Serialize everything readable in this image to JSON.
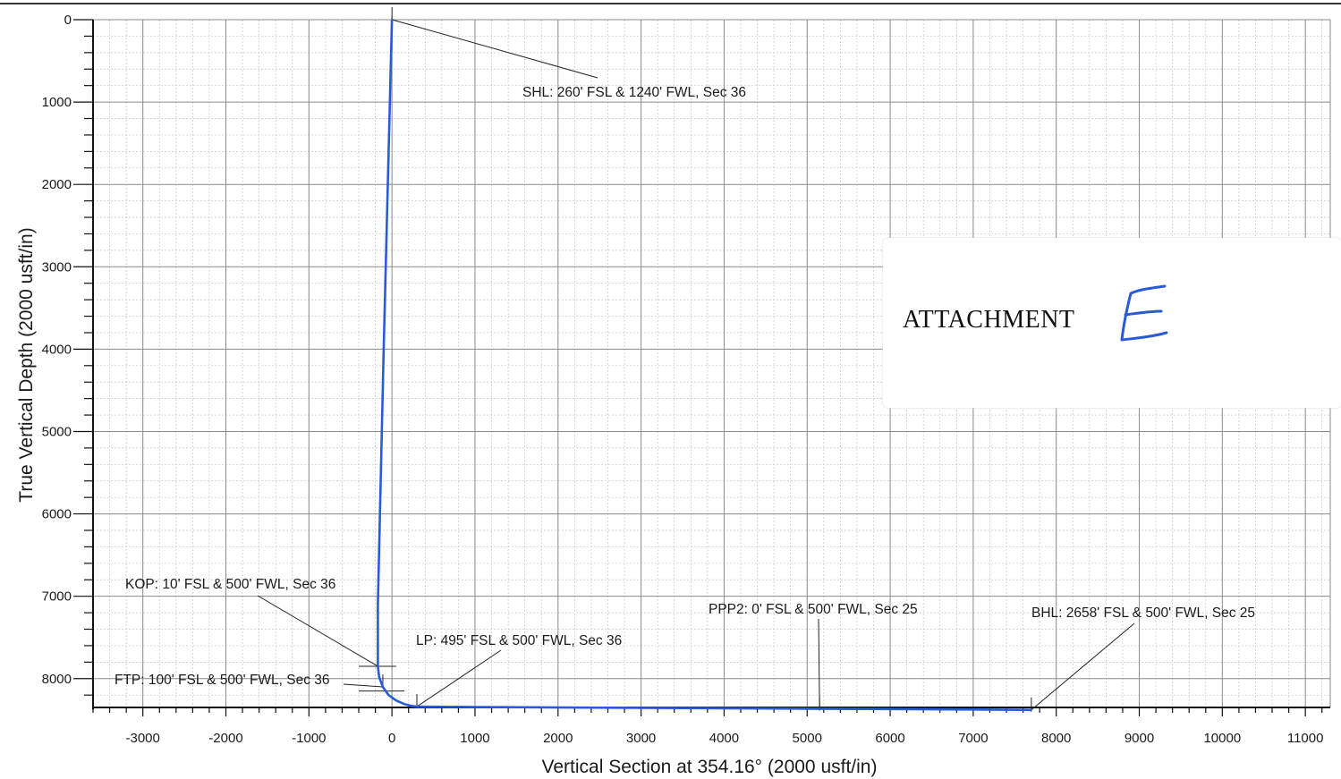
{
  "chart_data": {
    "type": "line",
    "xlabel": "Vertical Section at 354.16° (2000 usft/in)",
    "ylabel": "True Vertical Depth (2000 usft/in)",
    "xlim": [
      -3600,
      11300
    ],
    "ylim": [
      0,
      8350
    ],
    "y_inverted": true,
    "grid": true,
    "x_ticks": [
      -3000,
      -2000,
      -1000,
      0,
      1000,
      2000,
      3000,
      4000,
      5000,
      6000,
      7000,
      8000,
      9000,
      10000,
      11000
    ],
    "y_ticks": [
      0,
      1000,
      2000,
      3000,
      4000,
      5000,
      6000,
      7000,
      8000
    ],
    "series": [
      {
        "x": [
          0,
          -100,
          -170,
          -170,
          -155,
          -110,
          -40,
          50,
          150,
          230,
          300,
          1000,
          3000,
          5000,
          7000,
          7700
        ],
        "y": [
          0,
          4000,
          7100,
          7850,
          7980,
          8100,
          8200,
          8265,
          8310,
          8330,
          8340,
          8345,
          8355,
          8365,
          8375,
          8380
        ]
      }
    ],
    "annotations": [
      {
        "text": "SHL: 260' FSL & 1240' FWL, Sec 36",
        "x": 0,
        "y": 0
      },
      {
        "text": "KOP: 10' FSL & 500' FWL, Sec 36",
        "x": -170,
        "y": 7850
      },
      {
        "text": "FTP: 100' FSL & 500' FWL, Sec 36",
        "x": -110,
        "y": 8100
      },
      {
        "text": "LP: 495' FSL & 500' FWL, Sec 36",
        "x": 300,
        "y": 8340
      },
      {
        "text": "PPP2: 0' FSL & 500' FWL, Sec 25",
        "x": 5150,
        "y": 8368
      },
      {
        "text": "BHL: 2658' FSL & 500' FWL, Sec 25",
        "x": 7700,
        "y": 8380
      }
    ]
  },
  "attachment": {
    "label": "ATTACHMENT",
    "letter": "E"
  },
  "colors": {
    "grid_major": "#8a8a8a",
    "grid_minor": "#c4c4c4",
    "trajectory": "#2a5bd7"
  }
}
